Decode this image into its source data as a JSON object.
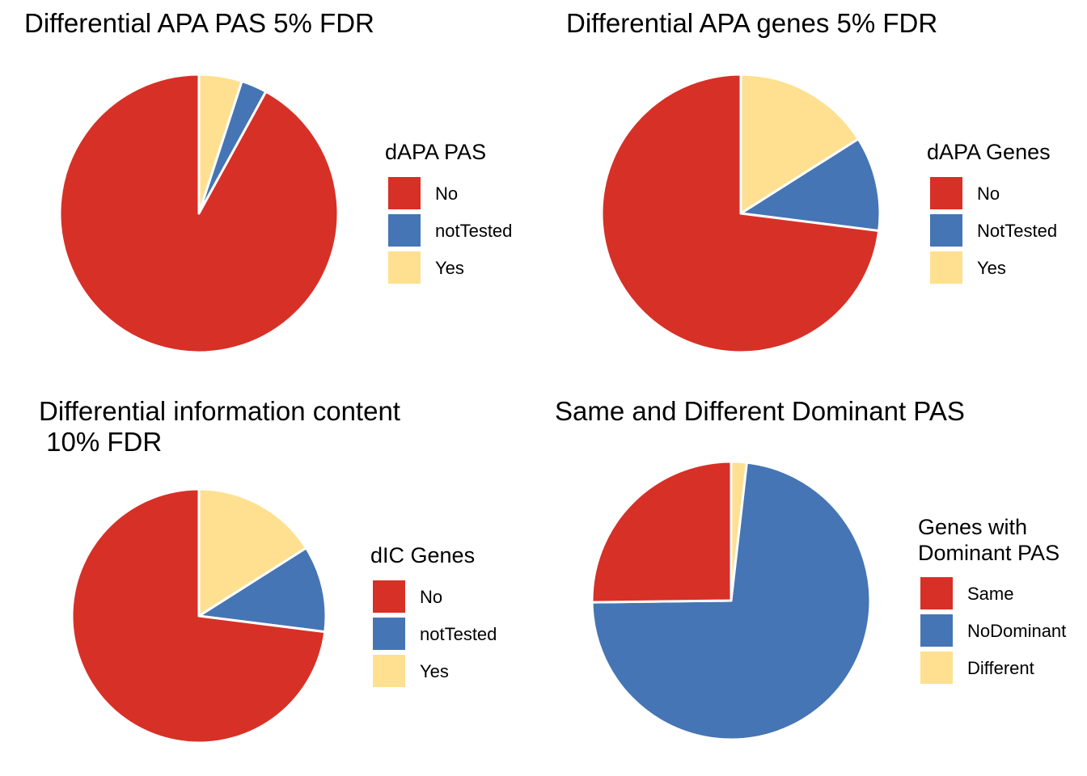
{
  "colors": {
    "red": "#d73027",
    "blue": "#4575b4",
    "yellow": "#fee090"
  },
  "chart_data": [
    {
      "type": "pie",
      "title": "Differential APA PAS 5% FDR",
      "legend": {
        "title": "dAPA PAS",
        "entries": [
          {
            "label": "No",
            "color": "#d73027"
          },
          {
            "label": "notTested",
            "color": "#4575b4"
          },
          {
            "label": "Yes",
            "color": "#fee090"
          }
        ]
      },
      "slices": [
        {
          "label": "Yes",
          "value": 0.05,
          "color": "#fee090"
        },
        {
          "label": "notTested",
          "value": 0.03,
          "color": "#4575b4"
        },
        {
          "label": "No",
          "value": 0.92,
          "color": "#d73027"
        }
      ]
    },
    {
      "type": "pie",
      "title": "Differential APA genes 5% FDR",
      "legend": {
        "title": "dAPA Genes",
        "entries": [
          {
            "label": "No",
            "color": "#d73027"
          },
          {
            "label": "NotTested",
            "color": "#4575b4"
          },
          {
            "label": "Yes",
            "color": "#fee090"
          }
        ]
      },
      "slices": [
        {
          "label": "Yes",
          "value": 0.16,
          "color": "#fee090"
        },
        {
          "label": "NotTested",
          "value": 0.11,
          "color": "#4575b4"
        },
        {
          "label": "No",
          "value": 0.73,
          "color": "#d73027"
        }
      ]
    },
    {
      "type": "pie",
      "title_lines": [
        "Differential information content",
        " 10% FDR"
      ],
      "legend": {
        "title": "dIC Genes",
        "entries": [
          {
            "label": "No",
            "color": "#d73027"
          },
          {
            "label": "notTested",
            "color": "#4575b4"
          },
          {
            "label": "Yes",
            "color": "#fee090"
          }
        ]
      },
      "slices": [
        {
          "label": "Yes",
          "value": 0.16,
          "color": "#fee090"
        },
        {
          "label": "notTested",
          "value": 0.11,
          "color": "#4575b4"
        },
        {
          "label": "No",
          "value": 0.73,
          "color": "#d73027"
        }
      ]
    },
    {
      "type": "pie",
      "title": "Same and Different Dominant PAS",
      "legend": {
        "title_lines": [
          "Genes with",
          "Dominant PAS"
        ],
        "entries": [
          {
            "label": "Same",
            "color": "#d73027"
          },
          {
            "label": "NoDominant",
            "color": "#4575b4"
          },
          {
            "label": "Different",
            "color": "#fee090"
          }
        ]
      },
      "slices": [
        {
          "label": "Different",
          "value": 0.018,
          "color": "#fee090"
        },
        {
          "label": "NoDominant",
          "value": 0.73,
          "color": "#4575b4"
        },
        {
          "label": "Same",
          "value": 0.252,
          "color": "#d73027"
        }
      ]
    }
  ]
}
